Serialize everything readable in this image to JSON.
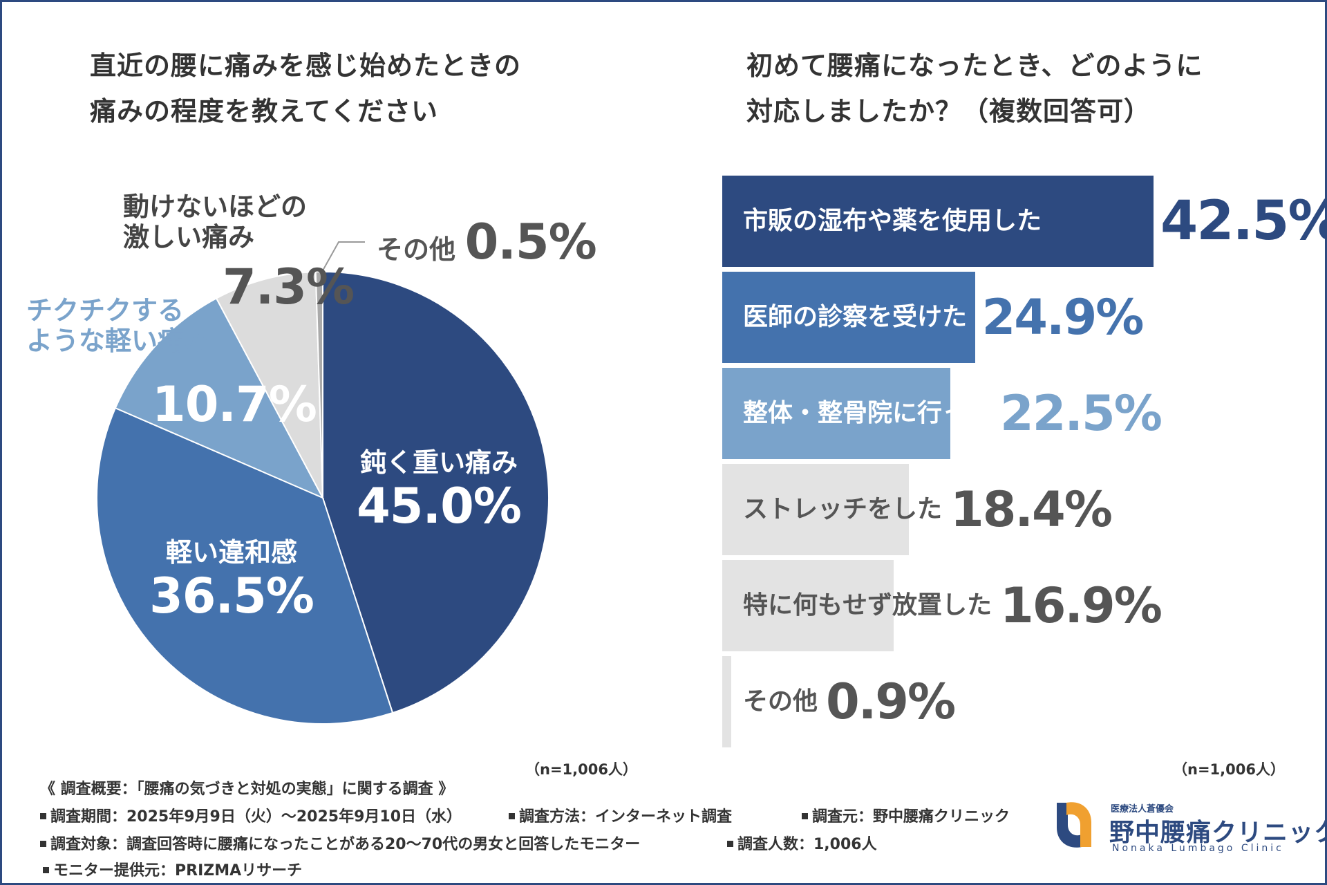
{
  "chart_data": [
    {
      "type": "pie",
      "title": "直近の腰に痛みを感じ始めたときの痛みの程度を教えてください",
      "title_lines": [
        "直近の腰に痛みを感じ始めたときの",
        "痛みの程度を教えてください"
      ],
      "note": "（n=1,006人）",
      "slices": [
        {
          "label": "鈍く重い痛み",
          "value": 45.0,
          "display": "45.0%",
          "color": "#2d4a80"
        },
        {
          "label": "軽い違和感",
          "value": 36.5,
          "display": "36.5%",
          "color": "#4472ad"
        },
        {
          "label": "チクチクするような軽い痛み",
          "label_lines": [
            "チクチクする",
            "ような軽い痛み"
          ],
          "value": 10.7,
          "display": "10.7%",
          "color": "#7aa3cb"
        },
        {
          "label": "動けないほどの激しい痛み",
          "label_lines": [
            "動けないほどの",
            "激しい痛み"
          ],
          "value": 7.3,
          "display": "7.3%",
          "color": "#dcdcdc"
        },
        {
          "label": "その他",
          "value": 0.5,
          "display": "0.5%",
          "color": "#aaaaaa"
        }
      ]
    },
    {
      "type": "bar",
      "orientation": "horizontal",
      "title": "初めて腰痛になったとき、どのように対応しましたか？（複数回答可）",
      "title_lines": [
        "初めて腰痛になったとき、どのように",
        "対応しましたか？（複数回答可）"
      ],
      "note": "（n=1,006人）",
      "xlim": [
        0,
        42.5
      ],
      "categories": [
        "市販の湿布や薬を使用した",
        "医師の診察を受けた",
        "整体・整骨院に行った",
        "ストレッチをした",
        "特に何もせず放置した",
        "その他"
      ],
      "values": [
        42.5,
        24.9,
        22.5,
        18.4,
        16.9,
        0.9
      ],
      "display_values": [
        "42.5%",
        "24.9%",
        "22.5%",
        "18.4%",
        "16.9%",
        "0.9%"
      ],
      "bar_colors": [
        "#2d4a80",
        "#4472ad",
        "#7aa3cb",
        "#e3e3e3",
        "#e3e3e3",
        "#e3e3e3"
      ],
      "label_colors": [
        "#ffffff",
        "#ffffff",
        "#ffffff",
        "#555555",
        "#555555",
        "#555555"
      ],
      "value_colors": [
        "#2d4a80",
        "#4472ad",
        "#7aa3cb",
        "#555555",
        "#555555",
        "#555555"
      ]
    }
  ],
  "footer": {
    "heading": "《 調査概要：「腰痛の気づきと対処の実態」に関する調査 》",
    "period": "調査期間：2025年9月9日（火）～2025年9月10日（水）",
    "method": "調査方法：インターネット調査",
    "source": "調査元：野中腰痛クリニック",
    "target": "調査対象：調査回答時に腰痛になったことがある20～70代の男女と回答したモニター",
    "count": "調査人数：1,006人",
    "provider": "モニター提供元：PRIZMAリサーチ"
  },
  "logo": {
    "org": "医療法人蒼優会",
    "name": "野中腰痛クリニック",
    "roman": "Nonaka Lumbago Clinic"
  },
  "colors": {
    "navy": "#2d4a80",
    "blue": "#4472ad",
    "light_blue": "#7aa3cb",
    "gray": "#dcdcdc",
    "orange": "#f0a030"
  }
}
